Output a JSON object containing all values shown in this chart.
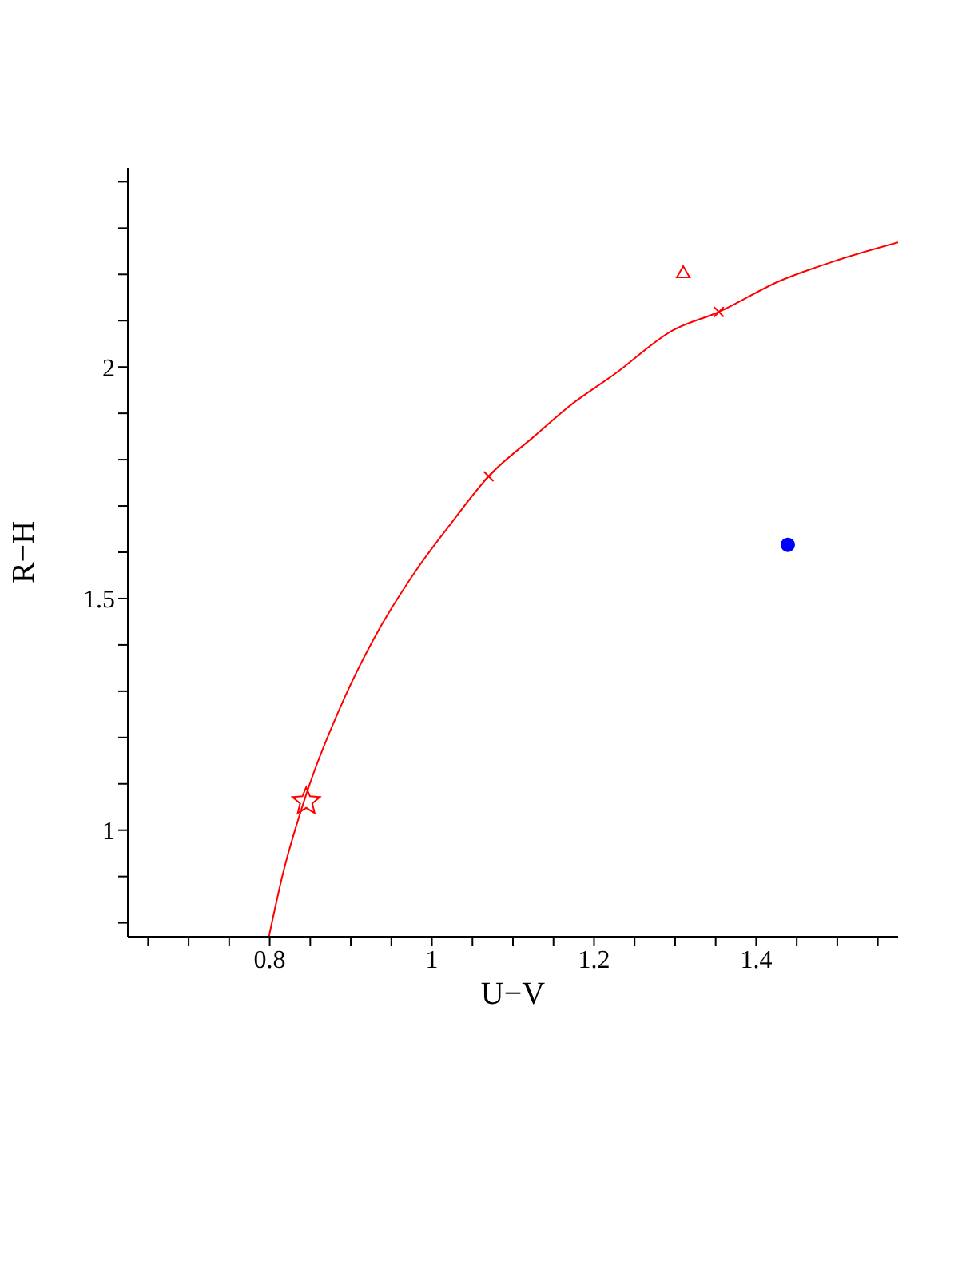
{
  "chart_data": {
    "type": "scatter",
    "xlabel": "U−V",
    "ylabel": "R−H",
    "xlim": [
      0.625,
      1.575
    ],
    "ylim": [
      0.77,
      2.43
    ],
    "xticks": [
      {
        "value": 0.65,
        "label": null
      },
      {
        "value": 0.7,
        "label": null
      },
      {
        "value": 0.75,
        "label": null
      },
      0.8,
      {
        "value": 0.85,
        "label": null
      },
      {
        "value": 0.9,
        "label": null
      },
      {
        "value": 0.95,
        "label": null
      },
      1,
      {
        "value": 1.05,
        "label": null
      },
      {
        "value": 1.1,
        "label": null
      },
      {
        "value": 1.15,
        "label": null
      },
      1.2,
      {
        "value": 1.25,
        "label": null
      },
      {
        "value": 1.3,
        "label": null
      },
      {
        "value": 1.35,
        "label": null
      },
      1.4,
      {
        "value": 1.45,
        "label": null
      },
      {
        "value": 1.5,
        "label": null
      },
      {
        "value": 1.55,
        "label": null
      }
    ],
    "yticks": [
      {
        "value": 0.8,
        "label": null
      },
      {
        "value": 0.9,
        "label": null
      },
      1,
      {
        "value": 1.1,
        "label": null
      },
      {
        "value": 1.2,
        "label": null
      },
      {
        "value": 1.3,
        "label": null
      },
      {
        "value": 1.4,
        "label": null
      },
      1.5,
      {
        "value": 1.6,
        "label": null
      },
      {
        "value": 1.7,
        "label": null
      },
      {
        "value": 1.8,
        "label": null
      },
      {
        "value": 1.9,
        "label": null
      },
      2,
      {
        "value": 2.1,
        "label": null
      },
      {
        "value": 2.2,
        "label": null
      },
      {
        "value": 2.3,
        "label": null
      },
      {
        "value": 2.4,
        "label": null
      }
    ],
    "grid": false,
    "series": [
      {
        "type": "line",
        "color": "#ff0000",
        "marker": "none",
        "line_style": "solid",
        "x": [
          0.799,
          0.816,
          0.845,
          0.892,
          0.928,
          0.981,
          1.02,
          1.07,
          1.126,
          1.172,
          1.224,
          1.297,
          1.354,
          1.428,
          1.501,
          1.575
        ],
        "values": [
          0.77,
          0.904,
          1.077,
          1.285,
          1.412,
          1.562,
          1.654,
          1.764,
          1.85,
          1.919,
          1.983,
          2.079,
          2.119,
          2.185,
          2.231,
          2.269
        ]
      },
      {
        "color": "#ff0000",
        "marker": "star",
        "x": [
          0.845
        ],
        "values": [
          1.062
        ]
      },
      {
        "color": "#ff0000",
        "marker": "triangle",
        "x": [
          1.31
        ],
        "values": [
          2.204
        ]
      },
      {
        "color": "#ff0000",
        "marker": "cross",
        "x": [
          1.07,
          1.354
        ],
        "values": [
          1.764,
          2.119
        ]
      },
      {
        "color": "#0000ff",
        "marker": "circle",
        "x": [
          1.439
        ],
        "values": [
          1.616
        ]
      }
    ]
  }
}
